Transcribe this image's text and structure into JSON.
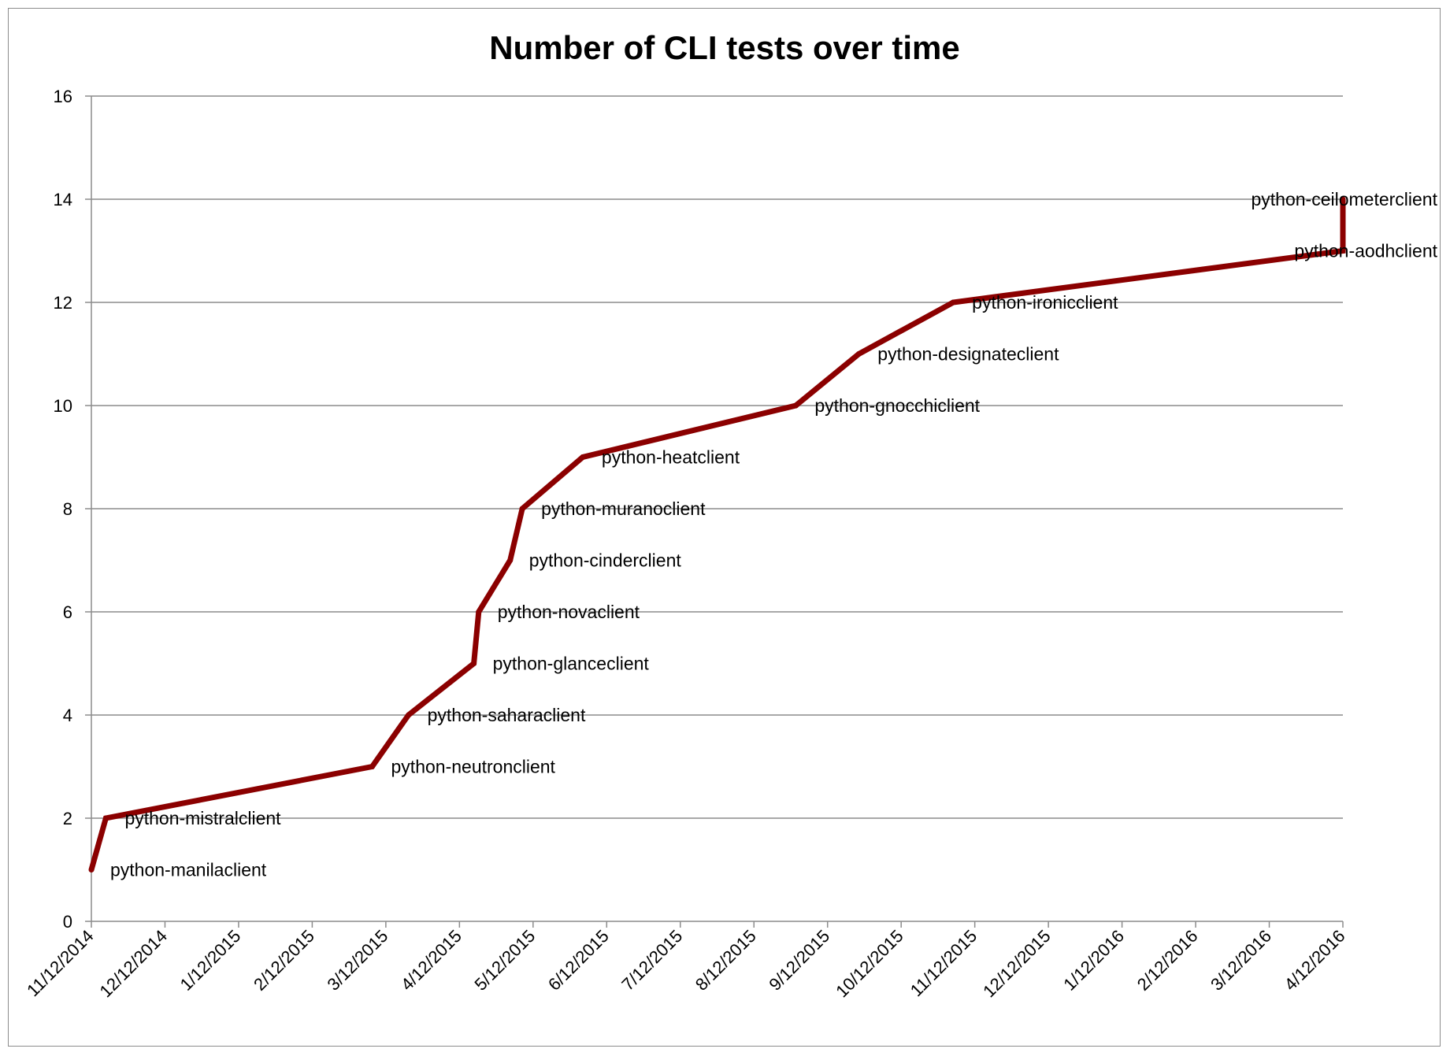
{
  "chart_data": {
    "type": "line",
    "title": "Number of CLI tests over time",
    "xlabel": "",
    "ylabel": "",
    "ylim": [
      0,
      16
    ],
    "yticks": [
      0,
      2,
      4,
      6,
      8,
      10,
      12,
      14,
      16
    ],
    "x_tick_labels": [
      "11/12/2014",
      "12/12/2014",
      "1/12/2015",
      "2/12/2015",
      "3/12/2015",
      "4/12/2015",
      "5/12/2015",
      "6/12/2015",
      "7/12/2015",
      "8/12/2015",
      "9/12/2015",
      "10/12/2015",
      "11/12/2015",
      "12/12/2015",
      "1/12/2016",
      "2/12/2016",
      "3/12/2016",
      "4/12/2016"
    ],
    "xlim": [
      "2014-11-12",
      "2016-04-12"
    ],
    "grid": true,
    "legend": "none",
    "series": [
      {
        "color": "#8b0000",
        "points": [
          {
            "x": "2014-11-12",
            "y": 1,
            "label": "python-manilaclient"
          },
          {
            "x": "2014-11-18",
            "y": 2,
            "label": "python-mistralclient"
          },
          {
            "x": "2015-03-08",
            "y": 3,
            "label": "python-neutronclient"
          },
          {
            "x": "2015-03-23",
            "y": 4,
            "label": "python-saharaclient"
          },
          {
            "x": "2015-04-19",
            "y": 5,
            "label": "python-glanceclient"
          },
          {
            "x": "2015-04-21",
            "y": 6,
            "label": "python-novaclient"
          },
          {
            "x": "2015-05-04",
            "y": 7,
            "label": "python-cinderclient"
          },
          {
            "x": "2015-05-09",
            "y": 8,
            "label": "python-muranoclient"
          },
          {
            "x": "2015-06-03",
            "y": 9,
            "label": "python-heatclient"
          },
          {
            "x": "2015-08-30",
            "y": 10,
            "label": "python-gnocchiclient"
          },
          {
            "x": "2015-09-25",
            "y": 11,
            "label": "python-designateclient"
          },
          {
            "x": "2015-11-03",
            "y": 12,
            "label": "python-ironicclient"
          },
          {
            "x": "2016-04-12",
            "y": 13,
            "label": "python-aodhclient"
          },
          {
            "x": "2016-04-12",
            "y": 14,
            "label": "python-ceilometerclient"
          }
        ]
      }
    ]
  }
}
